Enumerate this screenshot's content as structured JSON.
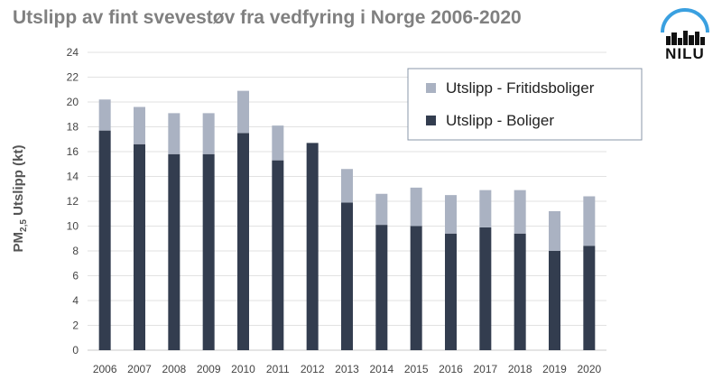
{
  "title": "Utslipp av fint svevestøv fra vedfyring i Norge 2006-2020",
  "logo": {
    "text": "NILU",
    "icon": "city-skyline-arc-icon",
    "arc_color": "#3aa0e0"
  },
  "chart_data": {
    "type": "bar",
    "stacked": true,
    "title": "Utslipp av fint svevestøv fra vedfyring i Norge 2006-2020",
    "ylabel_main": "PM",
    "ylabel_sub": "2,5",
    "ylabel_rest": " Utslipp (kt)",
    "xlabel": "",
    "ylim": [
      0,
      24
    ],
    "yticks": [
      0,
      2,
      4,
      6,
      8,
      10,
      12,
      14,
      16,
      18,
      20,
      22,
      24
    ],
    "grid": true,
    "legend_position": "top-right",
    "categories": [
      "2006",
      "2007",
      "2008",
      "2009",
      "2010",
      "2011",
      "2012",
      "2013",
      "2014",
      "2015",
      "2016",
      "2017",
      "2018",
      "2019",
      "2020"
    ],
    "series": [
      {
        "name": "Utslipp - Boliger",
        "color": "#333d4f",
        "values": [
          17.7,
          16.6,
          15.8,
          15.8,
          17.5,
          15.3,
          16.7,
          11.9,
          10.1,
          10.0,
          9.4,
          9.9,
          9.4,
          8.0,
          8.4
        ]
      },
      {
        "name": "Utslipp - Fritidsboliger",
        "color": "#aab2c2",
        "values": [
          2.5,
          3.0,
          3.3,
          3.3,
          3.4,
          2.8,
          0.0,
          2.7,
          2.5,
          3.1,
          3.1,
          3.0,
          3.5,
          3.2,
          4.0
        ]
      }
    ]
  }
}
